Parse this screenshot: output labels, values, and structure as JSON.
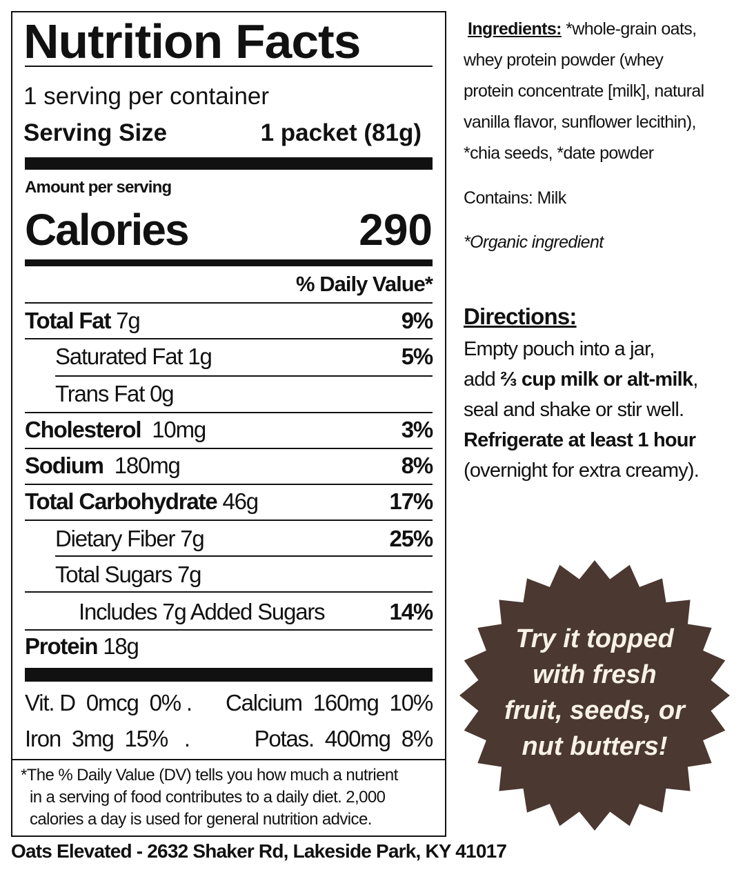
{
  "label": {
    "title": "Nutrition Facts",
    "servings": "1 serving per container",
    "serving_size_label": "Serving Size",
    "serving_size_value": "1 packet (81g)",
    "amount_per_serving": "Amount per serving",
    "calories_label": "Calories",
    "calories_value": "290",
    "dv_header": "% Daily Value*",
    "nutrients": [
      {
        "name": "Total Fat",
        "amount": "7g",
        "dv": "9%"
      },
      {
        "name": "Saturated Fat 1g",
        "dv": "5%"
      },
      {
        "name": "Trans Fat 0g"
      },
      {
        "name": "Cholesterol",
        "amount": "10mg",
        "dv": "3%"
      },
      {
        "name": "Sodium",
        "amount": "180mg",
        "dv": "8%"
      },
      {
        "name": "Total Carbohydrate",
        "amount": "46g",
        "dv": "17%"
      },
      {
        "name": "Dietary Fiber 7g",
        "dv": "25%"
      },
      {
        "name": "Total Sugars 7g"
      },
      {
        "name": "Includes 7g Added Sugars",
        "dv": "14%"
      },
      {
        "name": "Protein",
        "amount": "18g"
      }
    ],
    "vitamins": {
      "row1_left": "Vit. D  0mcg  0% .",
      "row1_right": "Calcium  160mg  10%",
      "row2_left": "Iron  3mg  15%   .",
      "row2_right": "Potas.  400mg  8%"
    },
    "footnote": [
      "*The % Daily Value (DV) tells you how much a nutrient",
      "in a serving of food contributes to a daily diet. 2,000",
      "calories a day is used for general nutrition advice."
    ]
  },
  "ingredients": {
    "heading": "Ingredients:",
    "lines": [
      " *whole-grain oats,",
      "whey protein powder (whey",
      "protein concentrate [milk], natural",
      "vanilla flavor, sunflower lecithin),",
      "*chia seeds, *date powder"
    ],
    "contains": "Contains: Milk",
    "organic_note": "*Organic ingredient"
  },
  "directions": {
    "heading": "Directions:",
    "line1": "Empty pouch into a jar,",
    "line2_pre": "add ",
    "line2_bold": "⅔ cup milk or alt-milk",
    "line2_post": ",",
    "line3": "seal and shake or stir well.",
    "line4": "Refrigerate at least 1 hour",
    "line5": "(overnight for extra creamy)."
  },
  "badge": {
    "lines": [
      "Try it topped",
      "with fresh",
      "fruit, seeds, or",
      "nut butters!"
    ],
    "color": "#4a3831",
    "text_color": "#f8f2e4"
  },
  "footer": "Oats Elevated - 2632 Shaker Rd, Lakeside Park, KY 41017"
}
